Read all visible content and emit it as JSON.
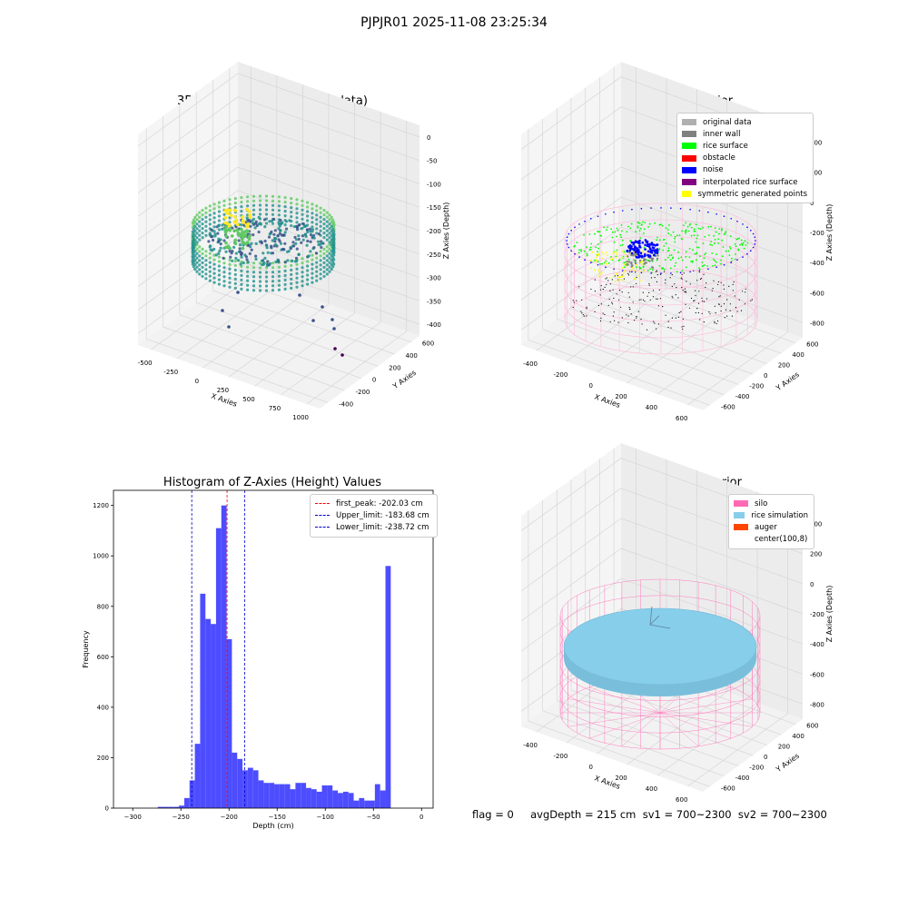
{
  "suptitle": "PJPJR01 2025-11-08 23:25:34",
  "status_line": "flag = 0     avgDepth = 215 cm  sv1 = 700~2300  sv2 = 700~2300",
  "colors": {
    "viridis": [
      "#440154",
      "#3b528b",
      "#21918c",
      "#5ec962",
      "#fde725"
    ],
    "histogram_bar": "#4d4dff",
    "silo": "#ff69b4",
    "rice_simulation": "#87ceeb",
    "auger": "#ff4500",
    "peak_line": "#ff0000",
    "limit_line": "#0000cc"
  },
  "chart_data": [
    {
      "type": "scatter",
      "projection": "3d",
      "title": "3D Plot of Silo Interior(row data)",
      "xlabel": "X Axies",
      "ylabel": "Y Axies",
      "zlabel": "Z Axies (Depth)",
      "x_ticks": [
        "-500",
        "-250",
        "0",
        "250",
        "500",
        "750",
        "1000"
      ],
      "y_ticks": [
        "-400",
        "-200",
        "0",
        "200",
        "400",
        "600"
      ],
      "z_ticks": [
        "0",
        "-50",
        "-100",
        "-150",
        "-200",
        "-250",
        "-300",
        "-350",
        "-400"
      ],
      "xlim": [
        -600,
        1100
      ],
      "ylim": [
        -450,
        700
      ],
      "zlim": [
        -420,
        20
      ],
      "grid": true,
      "colormap": "viridis (by depth)"
    },
    {
      "type": "scatter",
      "projection": "3d",
      "title": "3D classify of Silo Interior",
      "xlabel": "X Axies",
      "ylabel": "Y Axies",
      "zlabel": "Z Axies (Depth)",
      "x_ticks": [
        "-400",
        "-200",
        "0",
        "200",
        "400",
        "600"
      ],
      "y_ticks": [
        "-600",
        "-400",
        "-200",
        "0",
        "200",
        "400",
        "600"
      ],
      "z_ticks": [
        "400",
        "200",
        "0",
        "-200",
        "-400",
        "-600",
        "-800"
      ],
      "xlim": [
        -500,
        700
      ],
      "ylim": [
        -650,
        700
      ],
      "zlim": [
        -900,
        450
      ],
      "grid": true,
      "legend": "top-right",
      "legend_entries": [
        {
          "label": "original data",
          "color": "#b0b0b0"
        },
        {
          "label": "inner wall",
          "color": "#808080"
        },
        {
          "label": "rice surface",
          "color": "#00ff00"
        },
        {
          "label": "obstacle",
          "color": "#ff0000"
        },
        {
          "label": "noise",
          "color": "#0000ff"
        },
        {
          "label": "interpolated rice surface",
          "color": "#800080"
        },
        {
          "label": "symmetric generated points",
          "color": "#ffff00"
        }
      ]
    },
    {
      "type": "bar",
      "subtype": "histogram",
      "title": "Histogram of Z-Axies (Height) Values",
      "xlabel": "Depth (cm)",
      "ylabel": "Frequency",
      "xlim": [
        -320,
        12
      ],
      "ylim": [
        0,
        1260
      ],
      "x_ticks": [
        -300,
        -250,
        -200,
        -150,
        -100,
        -50,
        0
      ],
      "y_ticks": [
        0,
        200,
        400,
        600,
        800,
        1000,
        1200
      ],
      "bin_width": 5.5,
      "bin_start": -274,
      "values": [
        5,
        5,
        5,
        5,
        10,
        40,
        110,
        255,
        850,
        750,
        730,
        1110,
        1200,
        670,
        220,
        195,
        150,
        160,
        150,
        110,
        100,
        100,
        95,
        95,
        95,
        75,
        100,
        100,
        80,
        75,
        65,
        90,
        90,
        70,
        60,
        65,
        60,
        30,
        40,
        30,
        30,
        95,
        70,
        960
      ],
      "vlines": [
        {
          "label": "first_peak: -202.03 cm",
          "x": -202.03,
          "color": "#ff0000"
        },
        {
          "label": "Upper_limit: -183.68 cm",
          "x": -183.68,
          "color": "#0000cc"
        },
        {
          "label": "Lower_limit: -238.72 cm",
          "x": -238.72,
          "color": "#0000cc"
        }
      ],
      "legend": "top-right",
      "grid": false
    },
    {
      "type": "scatter",
      "projection": "3d",
      "title": "3D simulation of Silo Interior",
      "xlabel": "X Axies",
      "ylabel": "Y Axies",
      "zlabel": "Z Axies (Depth)",
      "x_ticks": [
        "-400",
        "-200",
        "0",
        "200",
        "400",
        "600"
      ],
      "y_ticks": [
        "-600",
        "-400",
        "-200",
        "0",
        "200",
        "400",
        "600"
      ],
      "z_ticks": [
        "400",
        "200",
        "0",
        "-200",
        "-400",
        "-600",
        "-800"
      ],
      "xlim": [
        -500,
        700
      ],
      "ylim": [
        -650,
        700
      ],
      "zlim": [
        -900,
        450
      ],
      "grid": true,
      "legend": "top-right",
      "legend_entries": [
        {
          "label": "silo",
          "color": "#ff69b4"
        },
        {
          "label": "rice simulation",
          "color": "#87ceeb"
        },
        {
          "label": "auger",
          "color": "#ff4500"
        },
        {
          "label": "center(100,8)",
          "color": "#ffffff"
        }
      ]
    }
  ]
}
